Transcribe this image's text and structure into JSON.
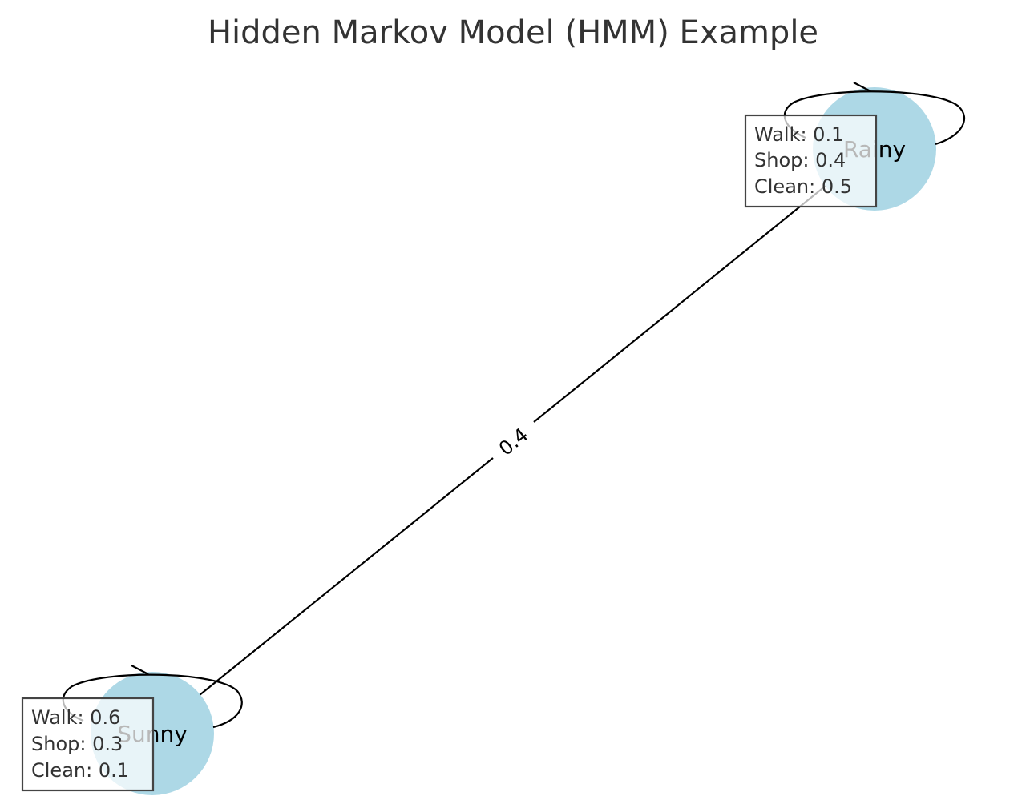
{
  "title": "Hidden Markov Model (HMM) Example",
  "colors": {
    "node_fill": "#add8e6",
    "edge": "#000000",
    "box_fill": "#ffffff",
    "box_border": "#444444",
    "title": "#333333"
  },
  "states": [
    {
      "name": "Rainy",
      "emissions": [
        {
          "label": "Walk: 0.1"
        },
        {
          "label": "Shop: 0.4"
        },
        {
          "label": "Clean: 0.5"
        }
      ]
    },
    {
      "name": "Sunny",
      "emissions": [
        {
          "label": "Walk: 0.6"
        },
        {
          "label": "Shop: 0.3"
        },
        {
          "label": "Clean: 0.1"
        }
      ]
    }
  ],
  "transitions": [
    {
      "from": "Rainy",
      "to": "Rainy",
      "label": ""
    },
    {
      "from": "Sunny",
      "to": "Sunny",
      "label": ""
    },
    {
      "from": "Sunny",
      "to": "Rainy",
      "label": "0.4"
    }
  ]
}
